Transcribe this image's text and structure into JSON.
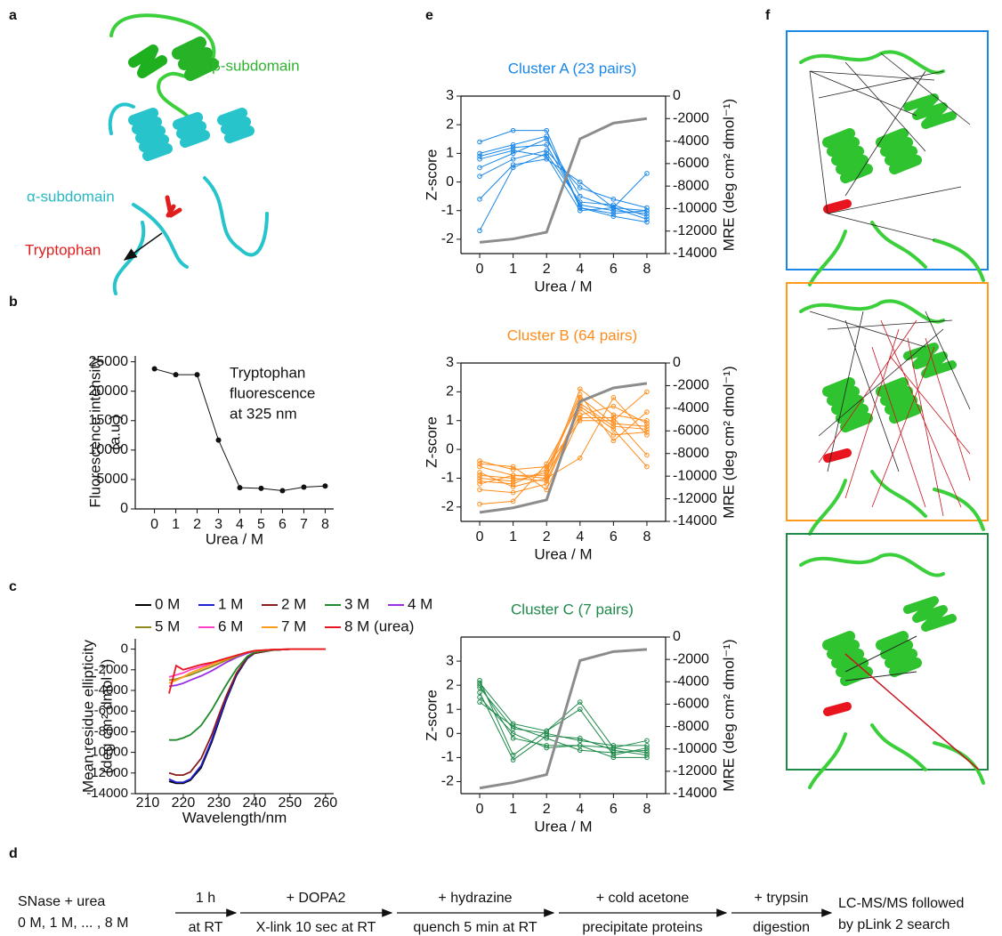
{
  "panels": [
    "a",
    "b",
    "c",
    "d",
    "e",
    "f"
  ],
  "structure": {
    "beta": "β-subdomain",
    "alpha": "α-subdomain",
    "trp": "Tryptophan"
  },
  "chart_data": [
    {
      "type": "line",
      "x": [
        0,
        1,
        2,
        3,
        4,
        5,
        6,
        7,
        8
      ],
      "values": [
        23800,
        22800,
        22800,
        11700,
        3600,
        3500,
        3100,
        3700,
        3900
      ],
      "color": "#111111",
      "xlim": [
        -0.9,
        8.4
      ],
      "xticks": [
        0,
        1,
        2,
        3,
        4,
        5,
        6,
        7,
        8
      ],
      "ylim": [
        0,
        26000
      ],
      "yticks": [
        0,
        5000,
        10000,
        15000,
        20000,
        25000
      ],
      "xlabel": "Urea / M",
      "ylabel": [
        "Fluorescence intensity",
        "(a.u.)"
      ],
      "annotation": [
        "Tryptophan",
        "fluorescence",
        "at 325 nm"
      ]
    },
    {
      "type": "line",
      "x": [
        216,
        218,
        220,
        222,
        225,
        228,
        230,
        232,
        235,
        238,
        240,
        245,
        250,
        255,
        260
      ],
      "series": [
        {
          "name": "0 M",
          "color": "#000000",
          "values": [
            -12800,
            -13000,
            -13000,
            -12700,
            -11500,
            -9000,
            -7000,
            -5000,
            -2500,
            -900,
            -400,
            -100,
            0,
            0,
            0
          ]
        },
        {
          "name": "1 M",
          "color": "#1f1fd6",
          "values": [
            -12600,
            -12900,
            -12900,
            -12600,
            -11300,
            -8800,
            -6800,
            -4900,
            -2400,
            -900,
            -400,
            -100,
            0,
            0,
            0
          ]
        },
        {
          "name": "2 M",
          "color": "#8b1a1a",
          "values": [
            -12000,
            -12200,
            -12200,
            -11900,
            -10600,
            -8300,
            -6400,
            -4600,
            -2300,
            -800,
            -400,
            -100,
            0,
            0,
            0
          ]
        },
        {
          "name": "3 M",
          "color": "#1e8a2a",
          "values": [
            -8800,
            -8800,
            -8600,
            -8300,
            -7400,
            -5900,
            -4700,
            -3500,
            -1900,
            -700,
            -300,
            -100,
            0,
            0,
            0
          ]
        },
        {
          "name": "4 M",
          "color": "#9b30e0",
          "values": [
            -3600,
            -3500,
            -3300,
            -3000,
            -2600,
            -2100,
            -1700,
            -1300,
            -800,
            -400,
            -200,
            -50,
            0,
            0,
            0
          ]
        },
        {
          "name": "5 M",
          "color": "#8f8a1a",
          "values": [
            -3000,
            -2900,
            -2700,
            -2500,
            -2100,
            -1700,
            -1400,
            -1100,
            -700,
            -300,
            -200,
            -50,
            0,
            0,
            0
          ]
        },
        {
          "name": "6 M",
          "color": "#ff3fc8",
          "values": [
            -2700,
            -2500,
            -2300,
            -2000,
            -1700,
            -1400,
            -1100,
            -900,
            -600,
            -300,
            -150,
            -50,
            0,
            0,
            0
          ]
        },
        {
          "name": "7 M",
          "color": "#ff9a1a",
          "values": [
            -3300,
            -3000,
            -2700,
            -2300,
            -1900,
            -1500,
            -1200,
            -1000,
            -600,
            -300,
            -150,
            -50,
            0,
            0,
            0
          ]
        },
        {
          "name": "8 M (urea)",
          "color": "#e8141e",
          "values": [
            -4300,
            -1600,
            -2000,
            -1800,
            -1500,
            -1300,
            -1100,
            -900,
            -600,
            -300,
            -150,
            -50,
            0,
            0,
            0
          ]
        }
      ],
      "xlim": [
        206.5,
        262.3
      ],
      "xticks": [
        210,
        220,
        230,
        240,
        250,
        260
      ],
      "ylim": [
        -14000,
        1000
      ],
      "yticks": [
        0,
        -2000,
        -4000,
        -6000,
        -8000,
        -10000,
        -12000,
        -14000
      ],
      "xlabel": "Wavelength/nm",
      "ylabel": [
        "Mean residue ellipticity",
        "(deg cm² dmol⁻¹)"
      ]
    },
    {
      "type": "line",
      "title": "Cluster A (23 pairs)",
      "color": "#1a87e8",
      "categories": [
        "0",
        "1",
        "2",
        "4",
        "6",
        "8"
      ],
      "series": [
        {
          "values": [
            0.9,
            1.2,
            1.3,
            -0.8,
            -1.0,
            -1.1
          ]
        },
        {
          "values": [
            0.5,
            1.0,
            1.5,
            -0.5,
            -0.9,
            -1.3
          ]
        },
        {
          "values": [
            1.4,
            1.8,
            1.8,
            -0.9,
            -1.1,
            -1.0
          ]
        },
        {
          "values": [
            -1.7,
            0.5,
            1.0,
            -0.7,
            -0.8,
            -1.2
          ]
        },
        {
          "values": [
            0.2,
            0.8,
            1.1,
            -0.2,
            -0.6,
            -0.9
          ]
        },
        {
          "values": [
            0.8,
            1.1,
            0.9,
            -1.0,
            -0.9,
            0.3
          ]
        },
        {
          "values": [
            1.0,
            1.3,
            1.6,
            -0.9,
            -1.2,
            -1.4
          ]
        },
        {
          "values": [
            -0.6,
            0.6,
            0.8,
            0.0,
            -0.9,
            -1.0
          ]
        },
        {
          "color": "#8c8c8c",
          "axis": "y2",
          "values": [
            -13000,
            -12700,
            -12100,
            -3800,
            -2400,
            -2000
          ]
        }
      ],
      "ylim": [
        -2.5,
        3
      ],
      "yticks": [
        -2,
        -1,
        0,
        1,
        2,
        3
      ],
      "y2lim": [
        -14000,
        0
      ],
      "y2ticks": [
        0,
        -2000,
        -4000,
        -6000,
        -8000,
        -10000,
        -12000,
        -14000
      ],
      "xlabel": "Urea / M",
      "ylabel": "Z-score",
      "y2label": "MRE (deg cm² dmol⁻¹)"
    },
    {
      "type": "line",
      "title": "Cluster B (64 pairs)",
      "color": "#ff8c1a",
      "categories": [
        "0",
        "1",
        "2",
        "4",
        "6",
        "8"
      ],
      "series": [
        {
          "values": [
            -1.0,
            -1.1,
            -0.8,
            1.8,
            0.9,
            0.8
          ]
        },
        {
          "values": [
            -0.6,
            -0.9,
            -1.0,
            2.1,
            1.2,
            1.0
          ]
        },
        {
          "values": [
            -1.4,
            -1.5,
            -1.2,
            1.4,
            0.5,
            0.6
          ]
        },
        {
          "values": [
            -0.4,
            -0.7,
            -0.6,
            1.0,
            1.0,
            2.0
          ]
        },
        {
          "values": [
            -0.9,
            -1.0,
            -1.1,
            1.5,
            0.7,
            -0.6
          ]
        },
        {
          "values": [
            -1.2,
            -0.9,
            -0.9,
            1.2,
            1.5,
            0.9
          ]
        },
        {
          "values": [
            -1.9,
            -1.8,
            -0.5,
            1.6,
            0.8,
            0.7
          ]
        },
        {
          "values": [
            -0.8,
            -1.3,
            -1.0,
            -0.3,
            1.8,
            0.5
          ]
        },
        {
          "values": [
            -1.1,
            -1.2,
            -0.7,
            1.9,
            0.3,
            1.3
          ]
        },
        {
          "values": [
            -0.5,
            -0.6,
            -1.4,
            1.1,
            1.1,
            -0.2
          ]
        },
        {
          "color": "#8c8c8c",
          "axis": "y2",
          "values": [
            -13200,
            -12800,
            -12100,
            -3400,
            -2200,
            -1800
          ]
        }
      ],
      "ylim": [
        -2.5,
        3
      ],
      "yticks": [
        -2,
        -1,
        0,
        1,
        2,
        3
      ],
      "y2lim": [
        -14000,
        0
      ],
      "y2ticks": [
        0,
        -2000,
        -4000,
        -6000,
        -8000,
        -10000,
        -12000,
        -14000
      ],
      "xlabel": "Urea / M",
      "ylabel": "Z-score",
      "y2label": "MRE (deg cm² dmol⁻¹)"
    },
    {
      "type": "line",
      "title": "Cluster C (7 pairs)",
      "color": "#1e8a4a",
      "categories": [
        "0",
        "1",
        "2",
        "4",
        "6",
        "8"
      ],
      "series": [
        {
          "values": [
            2.1,
            0.4,
            0.1,
            1.3,
            -0.6,
            -0.3
          ]
        },
        {
          "values": [
            1.7,
            -1.1,
            -0.1,
            -0.2,
            -0.7,
            -0.9
          ]
        },
        {
          "values": [
            1.9,
            0.2,
            0.0,
            -0.3,
            -0.5,
            -0.5
          ]
        },
        {
          "values": [
            2.2,
            -0.9,
            0.1,
            1.0,
            -0.9,
            -0.6
          ]
        },
        {
          "values": [
            1.3,
            0.3,
            -0.2,
            -0.7,
            -0.8,
            -0.7
          ]
        },
        {
          "values": [
            2.0,
            -0.2,
            -0.5,
            -0.5,
            -1.0,
            -1.0
          ]
        },
        {
          "values": [
            1.5,
            0.0,
            -0.6,
            -0.5,
            -0.6,
            -0.8
          ]
        },
        {
          "color": "#8c8c8c",
          "axis": "y2",
          "values": [
            -13500,
            -13000,
            -12300,
            -2100,
            -1300,
            -1100
          ]
        }
      ],
      "ylim": [
        -2.5,
        4
      ],
      "yticks": [
        -2,
        -1,
        0,
        1,
        2,
        3
      ],
      "y2lim": [
        -14000,
        0
      ],
      "y2ticks": [
        0,
        -2000,
        -4000,
        -6000,
        -8000,
        -10000,
        -12000,
        -14000
      ],
      "xlabel": "Urea / M",
      "ylabel": "Z-score",
      "y2label": "MRE (deg cm² dmol⁻¹)"
    }
  ],
  "workflow": {
    "start": [
      "SNase + urea",
      "0 M, 1 M, ... , 8 M"
    ],
    "steps": [
      {
        "above": "1 h",
        "below": "at RT"
      },
      {
        "above": "+ DOPA2",
        "below": "X-link 10 sec at RT"
      },
      {
        "above": "+ hydrazine",
        "below": "quench 5 min at RT"
      },
      {
        "above": "+ cold acetone",
        "below": "precipitate proteins"
      },
      {
        "above": "+ trypsin",
        "below": "digestion"
      }
    ],
    "end": [
      "LC-MS/MS followed",
      "by pLink 2 search"
    ]
  }
}
